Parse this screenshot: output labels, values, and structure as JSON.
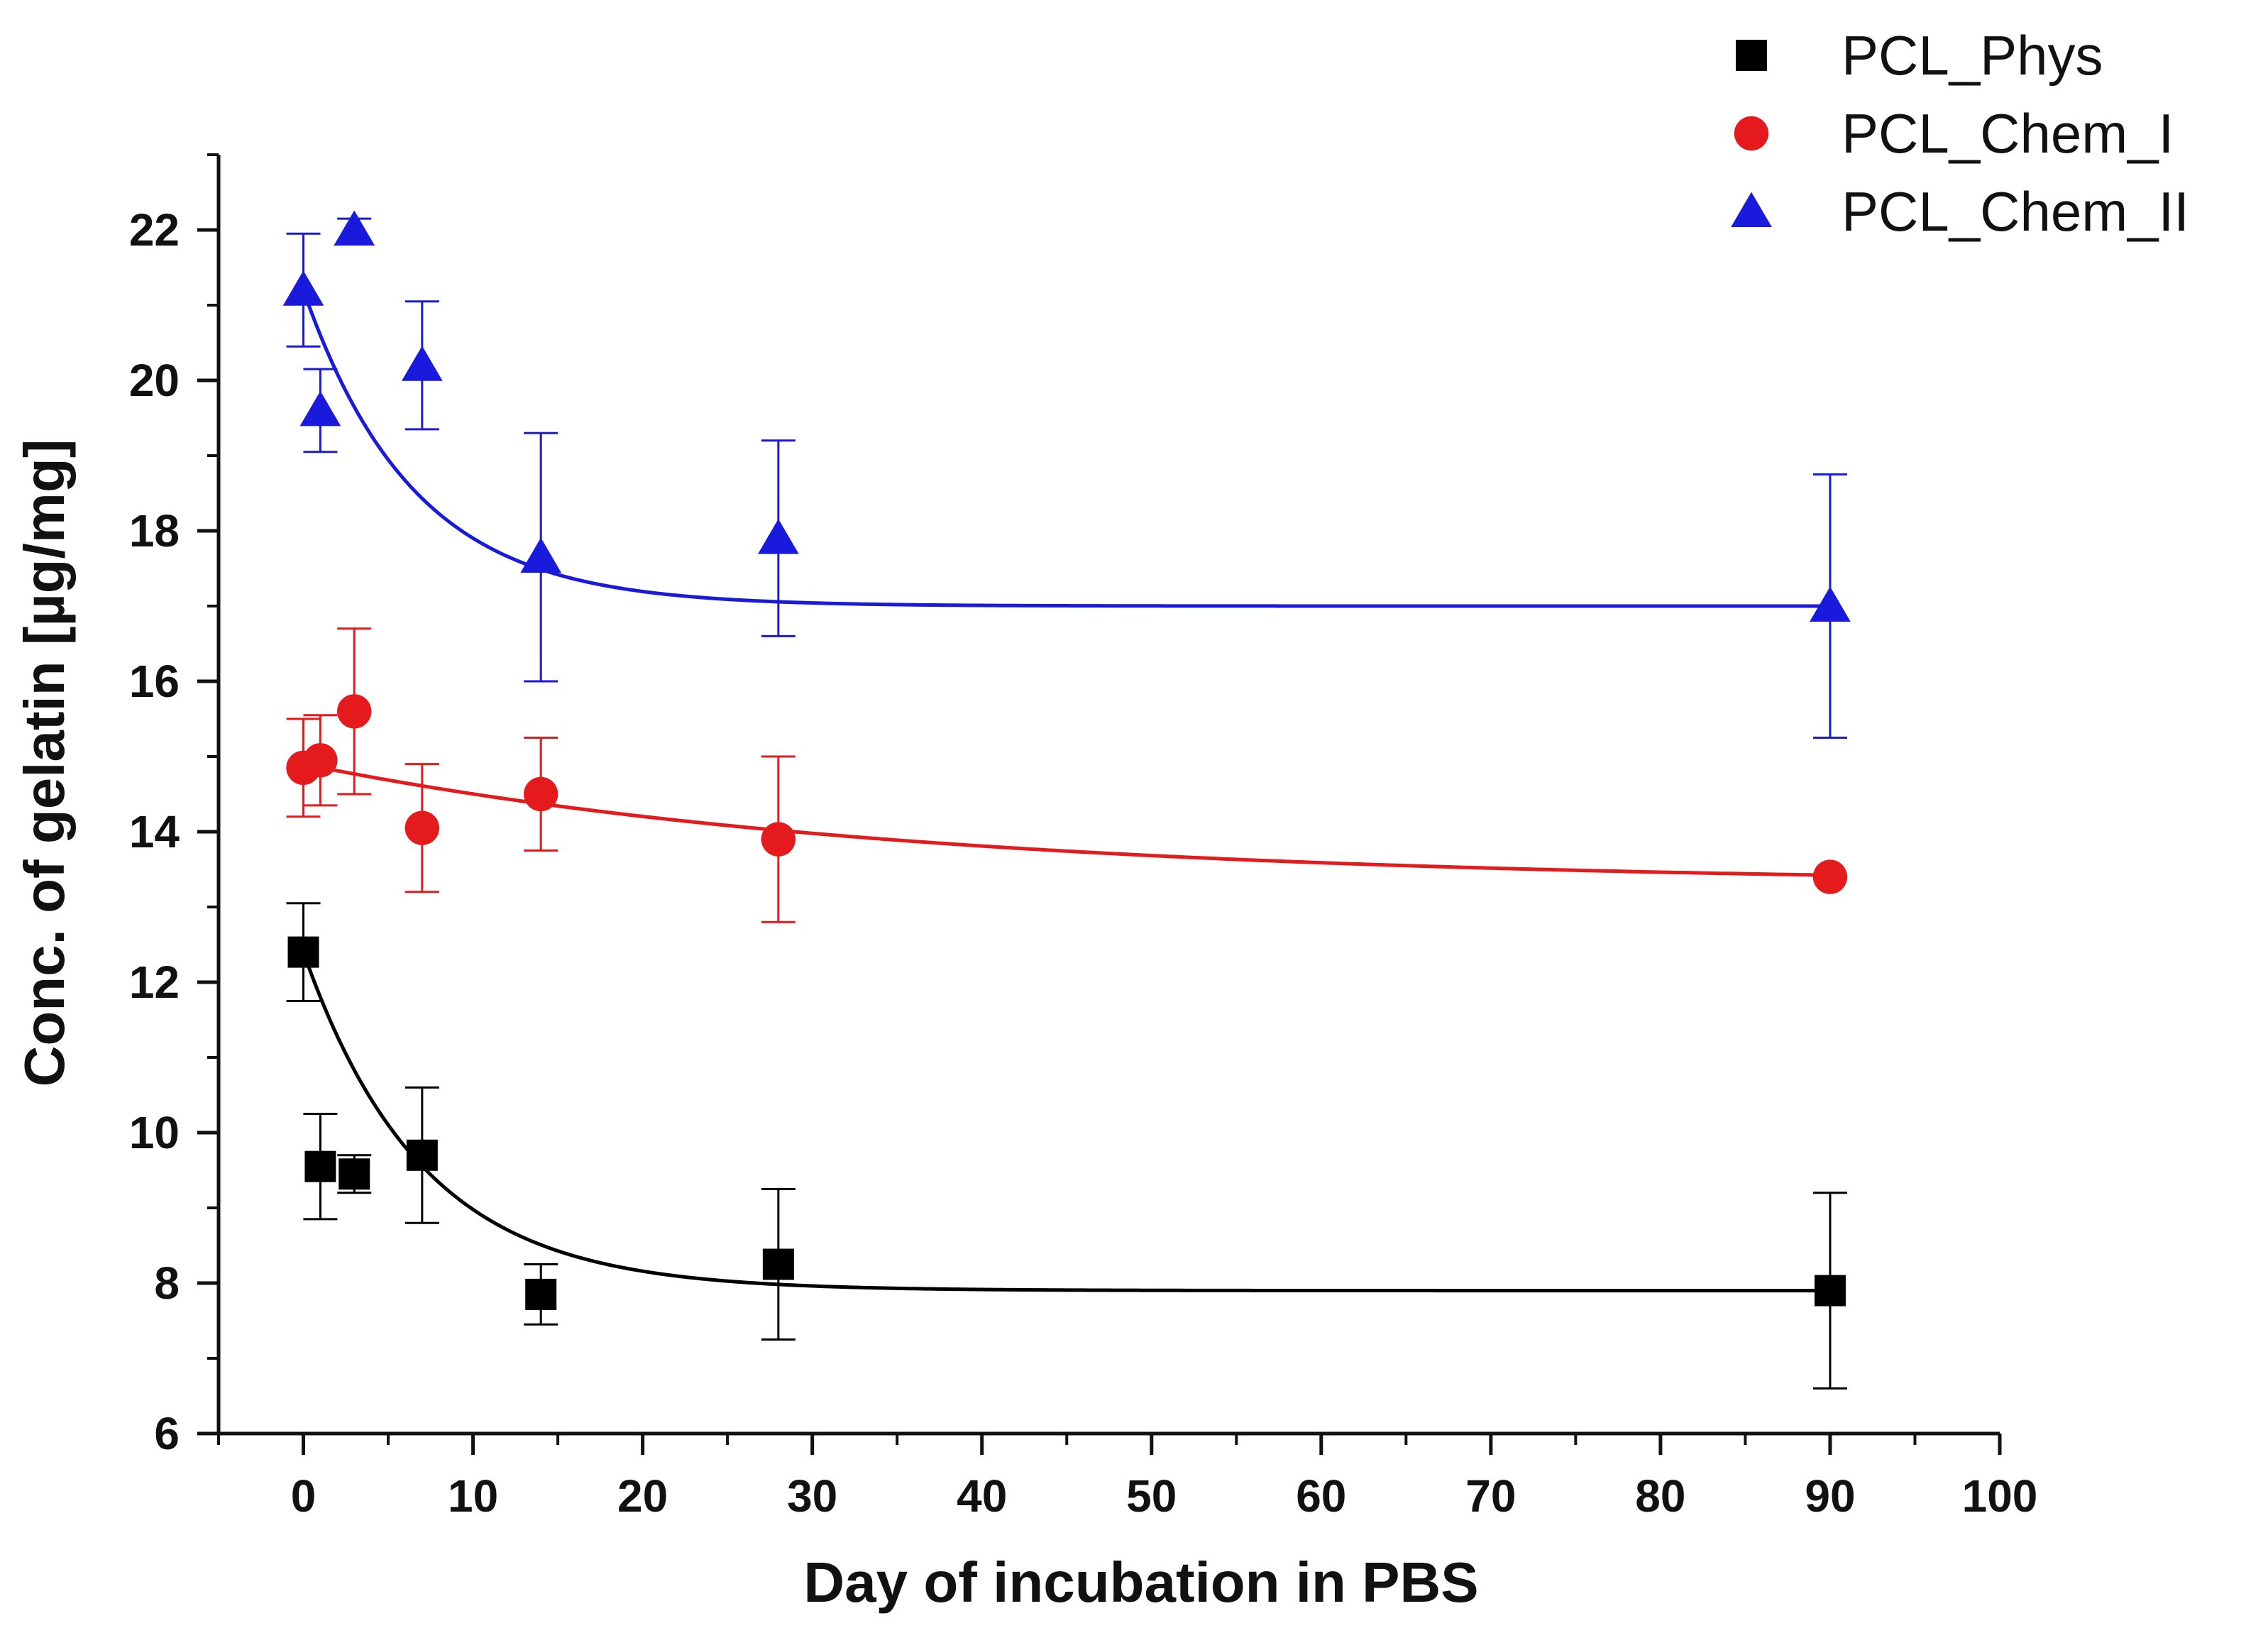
{
  "chart_data": {
    "type": "scatter",
    "title": "",
    "xlabel": "Day of incubation in PBS",
    "ylabel": "Conc. of gelatin [µg/mg]",
    "xlim": [
      -5,
      100
    ],
    "ylim": [
      6,
      23
    ],
    "xticks": [
      0,
      10,
      20,
      30,
      40,
      50,
      60,
      70,
      80,
      90,
      100
    ],
    "yticks": [
      6,
      8,
      10,
      12,
      14,
      16,
      18,
      20,
      22
    ],
    "xtick_labels": [
      "0",
      "10",
      "20",
      "30",
      "40",
      "50",
      "60",
      "70",
      "80",
      "90",
      "100"
    ],
    "ytick_labels": [
      "6",
      "8",
      "10",
      "12",
      "14",
      "16",
      "18",
      "20",
      "22"
    ],
    "legend_position": "top-right",
    "grid": false,
    "series": [
      {
        "name": "PCL_Phys",
        "marker": "square",
        "color": "#000000",
        "x": [
          0,
          1,
          3,
          7,
          14,
          28,
          90
        ],
        "y": [
          12.4,
          9.55,
          9.45,
          9.7,
          7.85,
          8.25,
          7.9
        ],
        "err": [
          0.65,
          0.7,
          0.25,
          0.9,
          0.4,
          1.0,
          1.3
        ],
        "fit": {
          "plateau": 7.9,
          "amplitude": 4.5,
          "tau": 7.0
        }
      },
      {
        "name": "PCL_Chem_I",
        "marker": "circle",
        "color": "#e41a1c",
        "x": [
          0,
          1,
          3,
          7,
          14,
          28,
          90
        ],
        "y": [
          14.85,
          14.95,
          15.6,
          14.05,
          14.5,
          13.9,
          13.4
        ],
        "err": [
          0.65,
          0.6,
          1.1,
          0.85,
          0.75,
          1.1,
          0.0
        ],
        "fit": {
          "plateau": 13.3,
          "amplitude": 1.6,
          "tau": 35.0
        }
      },
      {
        "name": "PCL_Chem_II",
        "marker": "triangle",
        "color": "#1a1adc",
        "x": [
          0,
          1,
          3,
          7,
          14,
          28,
          90
        ],
        "y": [
          21.2,
          19.6,
          22.0,
          20.2,
          17.65,
          17.9,
          17.0
        ],
        "err": [
          0.75,
          0.55,
          0.15,
          0.85,
          1.65,
          1.3,
          1.75
        ],
        "fit": {
          "plateau": 17.0,
          "amplitude": 4.2,
          "tau": 6.5
        }
      }
    ]
  }
}
